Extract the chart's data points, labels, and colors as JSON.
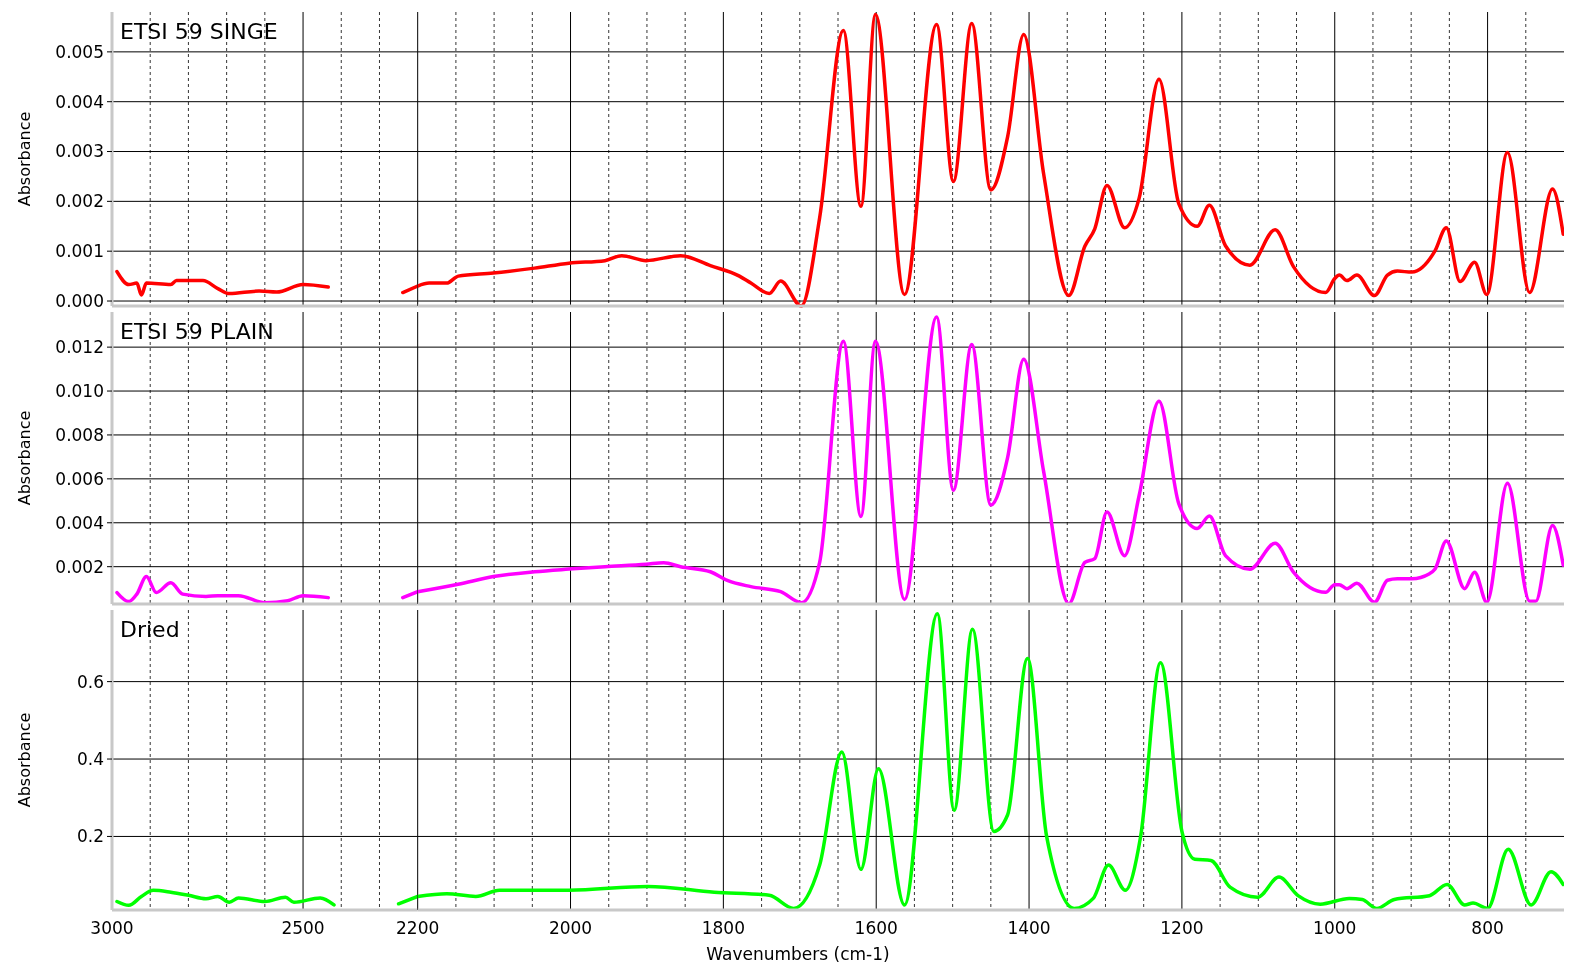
{
  "chart_data": [
    {
      "type": "line",
      "title": "ETSI 59 SINGE",
      "ylabel": "Absorbance",
      "color": "#ff0000",
      "grid": true,
      "tick_labels": "y",
      "xlim": [
        3000,
        2200
      ],
      "ylim": [
        -0.0001,
        0.0058
      ],
      "yticks": [
        {
          "value": 0,
          "label": "0.000"
        },
        {
          "value": 0.001,
          "label": "0.001"
        },
        {
          "value": 0.002,
          "label": "0.002"
        },
        {
          "value": 0.003,
          "label": "0.003"
        },
        {
          "value": 0.004,
          "label": "0.004"
        },
        {
          "value": 0.005,
          "label": "0.005"
        }
      ],
      "xticks": [
        3000,
        {
          "value": 2900,
          "label": null
        },
        {
          "value": 2800,
          "label": null
        },
        {
          "value": 2700,
          "label": null
        },
        {
          "value": 2600,
          "label": null
        },
        2500,
        {
          "value": 2400,
          "label": null
        },
        {
          "value": 2300,
          "label": null
        }
      ],
      "x": [
        2987,
        2956,
        2935,
        2923,
        2910,
        2846,
        2831,
        2762,
        2723,
        2693,
        2615,
        2569,
        2500,
        2434,
        2300,
        2239,
        2200
      ],
      "values": [
        0.00059,
        0.00033,
        0.00036,
        0.00012,
        0.00036,
        0.00033,
        0.00041,
        0.00041,
        0.00025,
        0.00015,
        0.0002,
        0.00018,
        0.00033,
        0.00028,
        null,
        0.00017,
        0.0003
      ]
    },
    {
      "type": "line",
      "color": "#ff0000",
      "grid": true,
      "tick_labels": false,
      "xlim": [
        2200,
        700
      ],
      "ylim": [
        -0.0001,
        0.0058
      ],
      "yticks": [
        0,
        0.001,
        0.002,
        0.003,
        0.004,
        0.005
      ],
      "xticks": [
        2200,
        {
          "value": 2150,
          "label": null
        },
        {
          "value": 2100,
          "label": null
        },
        {
          "value": 2050,
          "label": null
        },
        2000,
        {
          "value": 1950,
          "label": null
        },
        {
          "value": 1900,
          "label": null
        },
        {
          "value": 1850,
          "label": null
        },
        1800,
        {
          "value": 1750,
          "label": null
        },
        {
          "value": 1700,
          "label": null
        },
        {
          "value": 1650,
          "label": null
        },
        1600,
        {
          "value": 1550,
          "label": null
        },
        {
          "value": 1500,
          "label": null
        },
        {
          "value": 1450,
          "label": null
        },
        1400,
        {
          "value": 1350,
          "label": null
        },
        {
          "value": 1300,
          "label": null
        },
        {
          "value": 1250,
          "label": null
        },
        1200,
        {
          "value": 1150,
          "label": null
        },
        {
          "value": 1100,
          "label": null
        },
        {
          "value": 1050,
          "label": null
        },
        1000,
        {
          "value": 950,
          "label": null
        },
        {
          "value": 900,
          "label": null
        },
        {
          "value": 850,
          "label": null
        },
        800,
        {
          "value": 750,
          "label": null
        }
      ],
      "x": [
        2200,
        2185,
        2162,
        2147,
        2101,
        2047,
        2002,
        1955,
        1933,
        1901,
        1856,
        1817,
        1779,
        1764,
        1740,
        1725,
        1698,
        1674,
        1643,
        1620,
        1601,
        1563,
        1521,
        1499,
        1475,
        1450,
        1428,
        1407,
        1381,
        1348,
        1327,
        1314,
        1298,
        1275,
        1256,
        1230,
        1204,
        1180,
        1164,
        1143,
        1111,
        1078,
        1054,
        1012,
        1000,
        994,
        984,
        971,
        948,
        931,
        918,
        899,
        869,
        854,
        836,
        817,
        801,
        774,
        745,
        715,
        701
      ],
      "values": [
        0.0003,
        0.00036,
        0.00036,
        0.0005,
        0.00056,
        0.00066,
        0.00076,
        0.00081,
        0.00091,
        0.00081,
        0.00091,
        0.00071,
        0.0005,
        0.00036,
        0.00015,
        0.0004,
        -0.0001,
        0.00167,
        0.00543,
        0.0019,
        0.00575,
        0.00013,
        0.00555,
        0.0024,
        0.00557,
        0.00223,
        0.0033,
        0.00535,
        0.00256,
        0.00011,
        0.0011,
        0.00145,
        0.00232,
        0.00147,
        0.00206,
        0.00445,
        0.00195,
        0.0015,
        0.00192,
        0.00111,
        0.00072,
        0.00143,
        0.00069,
        0.00017,
        0.00045,
        0.00052,
        0.00041,
        0.00052,
        0.00011,
        0.00052,
        0.0006,
        0.00058,
        0.001,
        0.00147,
        0.00039,
        0.00078,
        0.00013,
        0.00298,
        0.00017,
        0.00225,
        0.00134
      ]
    },
    {
      "type": "line",
      "title": "ETSI 59 PLAIN",
      "ylabel": "Absorbance",
      "color": "#ff00ff",
      "grid": true,
      "tick_labels": "y",
      "xlim": [
        3000,
        2200
      ],
      "ylim": [
        0.0003,
        0.0136
      ],
      "yticks": [
        {
          "value": 0.002,
          "label": "0.002"
        },
        {
          "value": 0.004,
          "label": "0.004"
        },
        {
          "value": 0.006,
          "label": "0.006"
        },
        {
          "value": 0.008,
          "label": "0.008"
        },
        {
          "value": 0.01,
          "label": "0.010"
        },
        {
          "value": 0.012,
          "label": "0.012"
        }
      ],
      "xticks": [
        3000,
        {
          "value": 2900,
          "label": null
        },
        {
          "value": 2800,
          "label": null
        },
        {
          "value": 2700,
          "label": null
        },
        {
          "value": 2600,
          "label": null
        },
        2500,
        {
          "value": 2400,
          "label": null
        },
        {
          "value": 2300,
          "label": null
        }
      ],
      "x": [
        2987,
        2956,
        2935,
        2910,
        2884,
        2846,
        2815,
        2754,
        2723,
        2669,
        2600,
        2540,
        2500,
        2434,
        2300,
        2239,
        2200
      ],
      "values": [
        0.00082,
        0.00041,
        0.00075,
        0.00155,
        0.00082,
        0.00127,
        0.00075,
        0.00064,
        0.00068,
        0.00068,
        0.00036,
        0.00045,
        0.00068,
        0.00059,
        null,
        0.00059,
        0.00086
      ]
    },
    {
      "type": "line",
      "color": "#ff00ff",
      "grid": true,
      "tick_labels": false,
      "xlim": [
        2200,
        700
      ],
      "ylim": [
        0.0003,
        0.0136
      ],
      "yticks": [
        0.002,
        0.004,
        0.006,
        0.008,
        0.01,
        0.012
      ],
      "xticks": [
        2200,
        {
          "value": 2150,
          "label": null
        },
        {
          "value": 2100,
          "label": null
        },
        {
          "value": 2050,
          "label": null
        },
        2000,
        {
          "value": 1950,
          "label": null
        },
        {
          "value": 1900,
          "label": null
        },
        {
          "value": 1850,
          "label": null
        },
        1800,
        {
          "value": 1750,
          "label": null
        },
        {
          "value": 1700,
          "label": null
        },
        {
          "value": 1650,
          "label": null
        },
        1600,
        {
          "value": 1550,
          "label": null
        },
        {
          "value": 1500,
          "label": null
        },
        {
          "value": 1450,
          "label": null
        },
        1400,
        {
          "value": 1350,
          "label": null
        },
        {
          "value": 1300,
          "label": null
        },
        {
          "value": 1250,
          "label": null
        },
        1200,
        {
          "value": 1150,
          "label": null
        },
        {
          "value": 1100,
          "label": null
        },
        {
          "value": 1050,
          "label": null
        },
        1000,
        {
          "value": 950,
          "label": null
        },
        {
          "value": 900,
          "label": null
        },
        {
          "value": 850,
          "label": null
        },
        800,
        {
          "value": 750,
          "label": null
        }
      ],
      "x": [
        2200,
        2147,
        2101,
        2047,
        2002,
        1955,
        1901,
        1878,
        1856,
        1817,
        1794,
        1764,
        1725,
        1698,
        1674,
        1643,
        1620,
        1601,
        1563,
        1521,
        1499,
        1475,
        1450,
        1428,
        1407,
        1381,
        1348,
        1327,
        1314,
        1298,
        1275,
        1256,
        1230,
        1204,
        1180,
        1164,
        1143,
        1111,
        1078,
        1054,
        1012,
        1000,
        994,
        984,
        971,
        948,
        931,
        918,
        899,
        876,
        869,
        854,
        830,
        817,
        801,
        774,
        745,
        737,
        715,
        701
      ],
      "values": [
        0.00086,
        0.0012,
        0.00155,
        0.00177,
        0.00189,
        0.002,
        0.00211,
        0.00218,
        0.002,
        0.00177,
        0.00136,
        0.00109,
        0.00086,
        0.00036,
        0.0022,
        0.01227,
        0.00429,
        0.01227,
        0.00051,
        0.01337,
        0.00548,
        0.01212,
        0.00481,
        0.00698,
        0.01145,
        0.00635,
        0.00031,
        0.0022,
        0.00237,
        0.00449,
        0.0025,
        0.00523,
        0.00954,
        0.00486,
        0.00374,
        0.00431,
        0.0025,
        0.00188,
        0.00307,
        0.00175,
        0.00083,
        0.00118,
        0.00118,
        0.001,
        0.00125,
        0.00038,
        0.00138,
        0.00145,
        0.00145,
        0.00168,
        0.00188,
        0.00317,
        0.001,
        0.00175,
        0.00038,
        0.0058,
        0.00043,
        0.00043,
        0.00387,
        0.00207
      ]
    },
    {
      "type": "line",
      "title": "Dried",
      "ylabel": "Absorbance",
      "color": "#00ff00",
      "grid": true,
      "xlim": [
        3000,
        2200
      ],
      "ylim": [
        0.01,
        0.785
      ],
      "yticks": [
        0.2,
        0.4,
        0.6
      ],
      "xticks": [
        3000,
        {
          "value": 2900,
          "label": null
        },
        {
          "value": 2800,
          "label": null
        },
        {
          "value": 2700,
          "label": null
        },
        {
          "value": 2600,
          "label": null
        },
        2500,
        {
          "value": 2400,
          "label": null
        },
        {
          "value": 2300,
          "label": null
        }
      ],
      "x": [
        2987,
        2956,
        2923,
        2892,
        2846,
        2800,
        2754,
        2723,
        2693,
        2669,
        2600,
        2546,
        2524,
        2455,
        2419,
        2300,
        2250,
        2200
      ],
      "values": [
        0.032,
        0.022,
        0.045,
        0.061,
        0.056,
        0.048,
        0.039,
        0.045,
        0.03,
        0.041,
        0.032,
        0.043,
        0.03,
        0.041,
        0.023,
        null,
        0.026,
        0.045
      ]
    },
    {
      "type": "line",
      "xlabel": "Wavenumbers (cm-1)",
      "color": "#00ff00",
      "grid": true,
      "tick_labels": "x",
      "xlim": [
        2200,
        700
      ],
      "ylim": [
        0.01,
        0.785
      ],
      "yticks": [
        0.2,
        0.4,
        0.6
      ],
      "xticks": [
        2200,
        {
          "value": 2150,
          "label": null
        },
        {
          "value": 2100,
          "label": null
        },
        {
          "value": 2050,
          "label": null
        },
        2000,
        {
          "value": 1950,
          "label": null
        },
        {
          "value": 1900,
          "label": null
        },
        {
          "value": 1850,
          "label": null
        },
        1800,
        {
          "value": 1750,
          "label": null
        },
        {
          "value": 1700,
          "label": null
        },
        {
          "value": 1650,
          "label": null
        },
        1600,
        {
          "value": 1550,
          "label": null
        },
        {
          "value": 1500,
          "label": null
        },
        {
          "value": 1450,
          "label": null
        },
        1400,
        {
          "value": 1350,
          "label": null
        },
        {
          "value": 1300,
          "label": null
        },
        {
          "value": 1250,
          "label": null
        },
        1200,
        {
          "value": 1150,
          "label": null
        },
        {
          "value": 1100,
          "label": null
        },
        {
          "value": 1050,
          "label": null
        },
        1000,
        {
          "value": 950,
          "label": null
        },
        {
          "value": 900,
          "label": null
        },
        {
          "value": 850,
          "label": null
        },
        800,
        {
          "value": 750,
          "label": null
        }
      ],
      "x": [
        2200,
        2162,
        2124,
        2093,
        2002,
        1899,
        1812,
        1740,
        1708,
        1674,
        1645,
        1620,
        1597,
        1563,
        1520,
        1498,
        1474,
        1446,
        1428,
        1402,
        1377,
        1341,
        1316,
        1296,
        1274,
        1254,
        1228,
        1200,
        1183,
        1162,
        1137,
        1101,
        1073,
        1048,
        1019,
        981,
        964,
        945,
        922,
        876,
        853,
        830,
        819,
        800,
        773,
        743,
        717,
        701
      ],
      "values": [
        0.045,
        0.052,
        0.045,
        0.061,
        0.061,
        0.071,
        0.056,
        0.048,
        0.014,
        0.126,
        0.418,
        0.115,
        0.375,
        0.023,
        0.775,
        0.268,
        0.735,
        0.213,
        0.256,
        0.66,
        0.2,
        0.014,
        0.04,
        0.126,
        0.061,
        0.2,
        0.649,
        0.213,
        0.141,
        0.138,
        0.069,
        0.043,
        0.095,
        0.047,
        0.025,
        0.04,
        0.037,
        0.014,
        0.037,
        0.047,
        0.076,
        0.023,
        0.028,
        0.014,
        0.167,
        0.023,
        0.109,
        0.076
      ]
    }
  ]
}
